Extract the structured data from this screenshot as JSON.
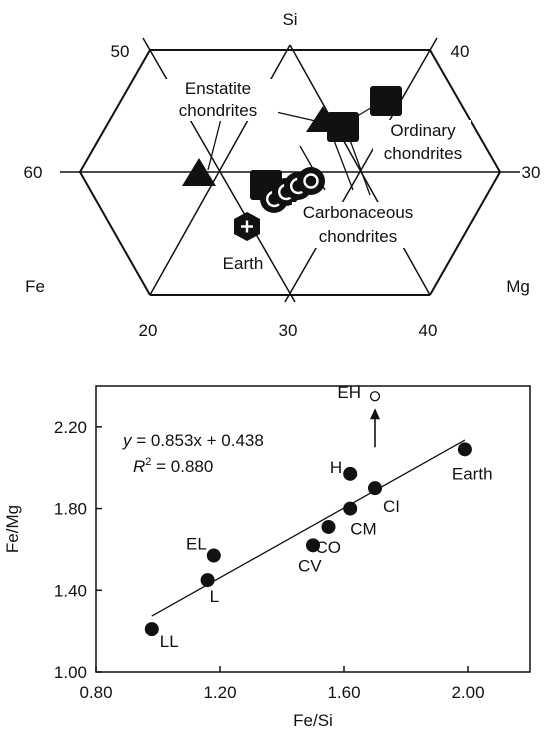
{
  "chart_data": [
    {
      "type": "ternary",
      "corners": {
        "top": "Si",
        "left": "Fe",
        "right": "Mg"
      },
      "tick_labels": {
        "upper_left": "50",
        "upper_right": "40",
        "middle_left": "60",
        "middle_right": "30",
        "bottom": [
          "20",
          "30",
          "40"
        ]
      },
      "group_labels": {
        "enstatite": [
          "Enstatite",
          "chondrites"
        ],
        "ordinary": [
          "Ordinary",
          "chondrites"
        ],
        "carbonaceous": [
          "Carbonaceous",
          "chondrites"
        ],
        "earth": "Earth"
      },
      "markers": [
        {
          "group": "enstatite",
          "shape": "triangle"
        },
        {
          "group": "enstatite",
          "shape": "triangle"
        },
        {
          "group": "ordinary",
          "shape": "square"
        },
        {
          "group": "ordinary",
          "shape": "square"
        },
        {
          "group": "ordinary",
          "shape": "square"
        },
        {
          "group": "carbonaceous",
          "shape": "c-circle"
        },
        {
          "group": "carbonaceous",
          "shape": "c-circle"
        },
        {
          "group": "carbonaceous",
          "shape": "c-circle"
        },
        {
          "group": "carbonaceous",
          "shape": "ring-circle"
        },
        {
          "group": "earth",
          "shape": "hexagon-plus"
        }
      ]
    },
    {
      "type": "scatter",
      "xlabel": "Fe/Si",
      "ylabel": "Fe/Mg",
      "xlim": [
        0.8,
        2.2
      ],
      "ylim": [
        1.0,
        2.4
      ],
      "xticks": [
        "0.80",
        "1.20",
        "1.60",
        "2.00"
      ],
      "yticks": [
        "1.00",
        "1.40",
        "1.80",
        "2.20"
      ],
      "points": [
        {
          "label": "LL",
          "x": 0.98,
          "y": 1.21
        },
        {
          "label": "L",
          "x": 1.16,
          "y": 1.45
        },
        {
          "label": "EL",
          "x": 1.18,
          "y": 1.57
        },
        {
          "label": "CV",
          "x": 1.5,
          "y": 1.62
        },
        {
          "label": "CO",
          "x": 1.55,
          "y": 1.71
        },
        {
          "label": "CM",
          "x": 1.62,
          "y": 1.8
        },
        {
          "label": "CI",
          "x": 1.7,
          "y": 1.9
        },
        {
          "label": "H",
          "x": 1.62,
          "y": 1.97
        },
        {
          "label": "Earth",
          "x": 1.99,
          "y": 2.09
        },
        {
          "label": "EH",
          "x": 1.7,
          "y": 2.35,
          "hollow": true,
          "arrow_to_y": 2.1
        }
      ],
      "fit": {
        "slope": 0.853,
        "intercept": 0.438,
        "x_range": [
          0.98,
          1.99
        ]
      },
      "equation_text": {
        "y": "y",
        "eq": " = 0.853x + 0.438",
        "r": "R",
        "sup": "2",
        "r_eq": " = 0.880"
      }
    }
  ]
}
